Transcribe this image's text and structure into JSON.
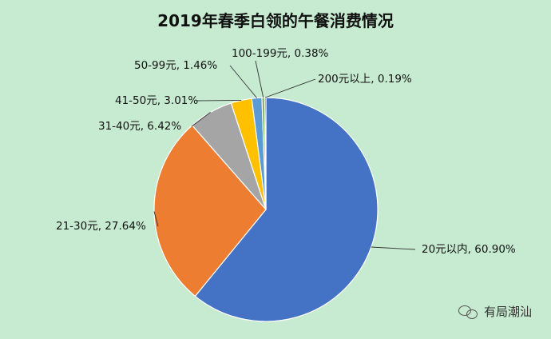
{
  "chart_data": {
    "type": "pie",
    "title": "2019年春季白领的午餐消费情况",
    "slices": [
      {
        "label": "20元以内, 60.90%",
        "value": 60.9,
        "color": "#4472c4"
      },
      {
        "label": "21-30元, 27.64%",
        "value": 27.64,
        "color": "#ed7d31"
      },
      {
        "label": "31-40元, 6.42%",
        "value": 6.42,
        "color": "#a5a5a5"
      },
      {
        "label": "41-50元, 3.01%",
        "value": 3.01,
        "color": "#ffc000"
      },
      {
        "label": "50-99元, 1.46%",
        "value": 1.46,
        "color": "#5b9bd5"
      },
      {
        "label": "100-199元, 0.38%",
        "value": 0.38,
        "color": "#70ad47"
      },
      {
        "label": "200元以上, 0.19%",
        "value": 0.19,
        "color": "#264478"
      }
    ]
  },
  "watermark": {
    "text": "有局潮汕"
  }
}
